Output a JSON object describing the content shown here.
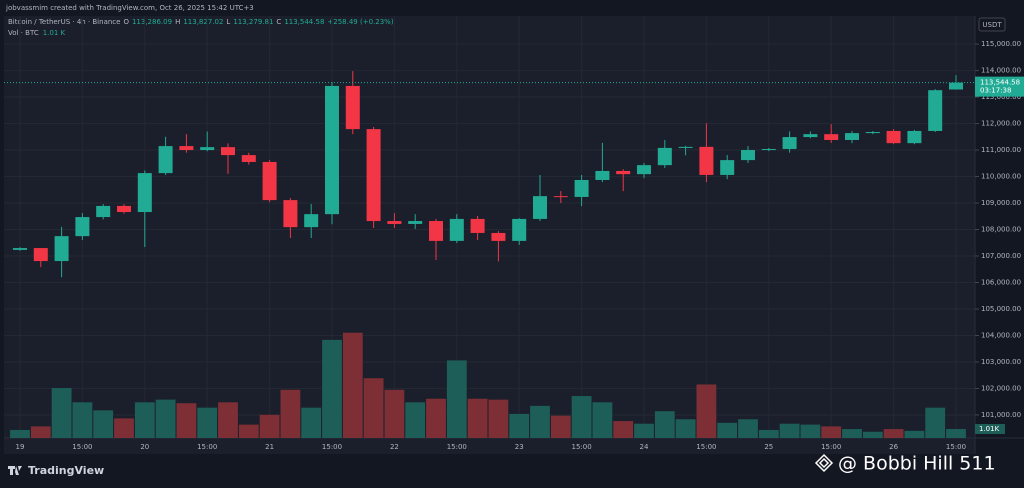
{
  "header": {
    "credit": "jobvassmim created with TradingView.com, Oct 26, 2025 15:42 UTC+3"
  },
  "chart_data": {
    "type": "candlestick",
    "title": "Bitcoin / TetherUS · 4h · Binance",
    "ohlc_legend": {
      "open_key": "O",
      "open": "113,286.09",
      "high_key": "H",
      "high": "113,827.02",
      "low_key": "L",
      "low": "113,279.81",
      "close_key": "C",
      "close": "113,544.58",
      "change": "+258.49 (+0.23%)"
    },
    "currency": "USDT",
    "x": [
      "19",
      null,
      null,
      "15:00",
      null,
      null,
      "20",
      null,
      null,
      "15:00",
      null,
      null,
      "21",
      null,
      null,
      "15:00",
      null,
      null,
      "22",
      null,
      null,
      "15:00",
      null,
      null,
      "23",
      null,
      null,
      "15:00",
      null,
      null,
      "24",
      null,
      null,
      "15:00",
      null,
      null,
      "25",
      null,
      null,
      "15:00",
      null,
      null,
      "26",
      null,
      null,
      "15:00"
    ],
    "open": [
      107230,
      107300,
      106810,
      107750,
      108470,
      108890,
      108660,
      110130,
      111150,
      111000,
      111110,
      110810,
      110550,
      109110,
      108090,
      108580,
      113420,
      111790,
      108320,
      108210,
      108320,
      107570,
      108400,
      107870,
      107570,
      108400,
      109260,
      109230,
      109870,
      110210,
      110090,
      110430,
      111080,
      111120,
      110060,
      110620,
      111000,
      111040,
      111490,
      111600,
      111380,
      111640,
      111720,
      111260,
      111720,
      113286.09
    ],
    "high": [
      107330,
      107300,
      108100,
      108620,
      108960,
      108960,
      110230,
      111500,
      111600,
      111700,
      111250,
      110900,
      110620,
      109190,
      108960,
      113570,
      113980,
      111870,
      108620,
      108580,
      108400,
      108580,
      108510,
      107940,
      108430,
      110060,
      109450,
      110060,
      111270,
      110280,
      110510,
      111380,
      111160,
      112010,
      110810,
      111150,
      111080,
      111700,
      111700,
      111980,
      111720,
      111720,
      111790,
      111760,
      113300,
      113827.02
    ],
    "low": [
      107200,
      106580,
      106200,
      107600,
      108380,
      108600,
      107340,
      110060,
      110900,
      110950,
      110100,
      110450,
      109030,
      107680,
      107680,
      108200,
      111600,
      108060,
      108060,
      108020,
      106850,
      107490,
      107600,
      106800,
      107420,
      108320,
      109000,
      108880,
      109790,
      109450,
      109940,
      110320,
      110800,
      109790,
      109900,
      110510,
      110960,
      110900,
      111450,
      111270,
      111260,
      111600,
      111220,
      111220,
      111680,
      113279.81
    ],
    "close": [
      107300,
      106810,
      107750,
      108470,
      108890,
      108660,
      110130,
      111150,
      111000,
      111110,
      110810,
      110550,
      109110,
      108090,
      108580,
      113420,
      111790,
      108320,
      108210,
      108320,
      107570,
      108400,
      107870,
      107570,
      108400,
      109260,
      109230,
      109870,
      110210,
      110090,
      110430,
      111080,
      111120,
      110060,
      110620,
      111000,
      111040,
      111490,
      111600,
      111380,
      111640,
      111680,
      111260,
      111720,
      113260,
      113544.58
    ],
    "up_color": "#22ab94",
    "down_color": "#f23645",
    "ylim": [
      100130,
      116060
    ],
    "yticks": [
      {
        "value": 101000,
        "label": "101,000.00"
      },
      {
        "value": 102000,
        "label": "102,000.00"
      },
      {
        "value": 103000,
        "label": "103,000.00"
      },
      {
        "value": 104000,
        "label": "104,000.00"
      },
      {
        "value": 105000,
        "label": "105,000.00"
      },
      {
        "value": 106000,
        "label": "106,000.00"
      },
      {
        "value": 107000,
        "label": "107,000.00"
      },
      {
        "value": 108000,
        "label": "108,000.00"
      },
      {
        "value": 109000,
        "label": "109,000.00"
      },
      {
        "value": 110000,
        "label": "110,000.00"
      },
      {
        "value": 111000,
        "label": "111,000.00"
      },
      {
        "value": 112000,
        "label": "112,000.00"
      },
      {
        "value": 113000,
        "label": "113,000.00"
      },
      {
        "value": 114000,
        "label": "114,000.00"
      },
      {
        "value": 115000,
        "label": "115,000.00"
      }
    ],
    "grid": true,
    "last_price_label": "113,544.58",
    "countdown": "03:17:38",
    "volume": {
      "name": "Vol · BTC",
      "legend_value": "1.01 K",
      "values": [
        0.9,
        1.3,
        5.6,
        4.0,
        3.1,
        2.2,
        4.0,
        4.3,
        3.9,
        3.4,
        4.0,
        1.5,
        2.6,
        5.4,
        3.4,
        11.0,
        11.8,
        6.7,
        5.4,
        4.0,
        4.4,
        8.7,
        4.4,
        4.3,
        2.7,
        3.6,
        2.5,
        4.7,
        4.0,
        1.9,
        1.6,
        3.0,
        2.1,
        6.0,
        1.7,
        2.1,
        0.9,
        1.6,
        1.5,
        1.3,
        1.0,
        0.7,
        1.0,
        0.8,
        3.4,
        1.01
      ],
      "value_labels": [
        null,
        null,
        null,
        null,
        null,
        null,
        null,
        null,
        null,
        null,
        null,
        null,
        null,
        null,
        null,
        null,
        null,
        null,
        null,
        null,
        null,
        null,
        null,
        null,
        null,
        null,
        null,
        null,
        null,
        null,
        null,
        null,
        null,
        null,
        null,
        null,
        null,
        null,
        null,
        null,
        null,
        null,
        null,
        null,
        null,
        "1.01K"
      ],
      "y2lim": [
        0,
        47.3
      ],
      "up_color": "#1d5f58",
      "down_color": "#7e2f36"
    }
  },
  "footer": {
    "logo": "TradingView",
    "watermark": "@ Bobbi Hill 511"
  }
}
